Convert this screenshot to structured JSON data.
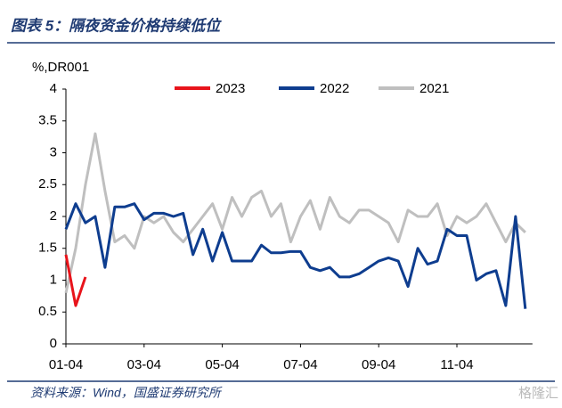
{
  "chart_data": {
    "type": "line",
    "title": "图表 5：隔夜资金价格持续低位",
    "y_label": "%,DR001",
    "source": "资料来源：Wind，国盛证券研究所",
    "watermark": "格隆汇",
    "categories": [
      "01-04",
      null,
      null,
      null,
      null,
      null,
      null,
      null,
      "03-04",
      null,
      null,
      null,
      null,
      null,
      null,
      null,
      "05-04",
      null,
      null,
      null,
      null,
      null,
      null,
      null,
      "07-04",
      null,
      null,
      null,
      null,
      null,
      null,
      null,
      "09-04",
      null,
      null,
      null,
      null,
      null,
      null,
      null,
      "11-04",
      null,
      null,
      null,
      null,
      null,
      null,
      null
    ],
    "ylim": [
      0,
      4
    ],
    "yticks": [
      0,
      0.5,
      1,
      1.5,
      2,
      2.5,
      3,
      3.5,
      4
    ],
    "legend": "top",
    "series": [
      {
        "name": "2023",
        "color": "#e8141b",
        "values": [
          1.4,
          0.6,
          1.05,
          null,
          null,
          null,
          null,
          null,
          null,
          null,
          null,
          null,
          null,
          null,
          null,
          null,
          null,
          null,
          null,
          null,
          null,
          null,
          null,
          null,
          null,
          null,
          null,
          null,
          null,
          null,
          null,
          null,
          null,
          null,
          null,
          null,
          null,
          null,
          null,
          null,
          null,
          null,
          null,
          null,
          null,
          null,
          null,
          null
        ]
      },
      {
        "name": "2022",
        "color": "#0e3d8f",
        "values": [
          1.8,
          2.2,
          1.9,
          2.0,
          1.2,
          2.15,
          2.15,
          2.2,
          1.95,
          2.05,
          2.05,
          2.0,
          2.05,
          1.4,
          1.8,
          1.3,
          1.75,
          1.3,
          1.3,
          1.3,
          1.55,
          1.43,
          1.43,
          1.45,
          1.45,
          1.2,
          1.15,
          1.2,
          1.05,
          1.05,
          1.1,
          1.2,
          1.3,
          1.35,
          1.3,
          0.9,
          1.5,
          1.25,
          1.3,
          1.8,
          1.7,
          1.7,
          1.0,
          1.1,
          1.15,
          0.6,
          2.0,
          0.55
        ]
      },
      {
        "name": "2021",
        "color": "#bfbfbf",
        "values": [
          0.8,
          1.5,
          2.5,
          3.3,
          2.4,
          1.6,
          1.7,
          1.5,
          2.0,
          1.9,
          2.0,
          1.75,
          1.6,
          1.8,
          2.0,
          2.2,
          1.8,
          2.3,
          2.0,
          2.3,
          2.4,
          2.0,
          2.2,
          1.6,
          2.0,
          2.25,
          1.8,
          2.3,
          2.0,
          1.9,
          2.1,
          2.1,
          2.0,
          1.9,
          1.6,
          2.1,
          2.0,
          2.0,
          2.2,
          1.7,
          2.0,
          1.9,
          2.0,
          2.2,
          1.9,
          1.6,
          1.9,
          1.75
        ]
      }
    ]
  }
}
